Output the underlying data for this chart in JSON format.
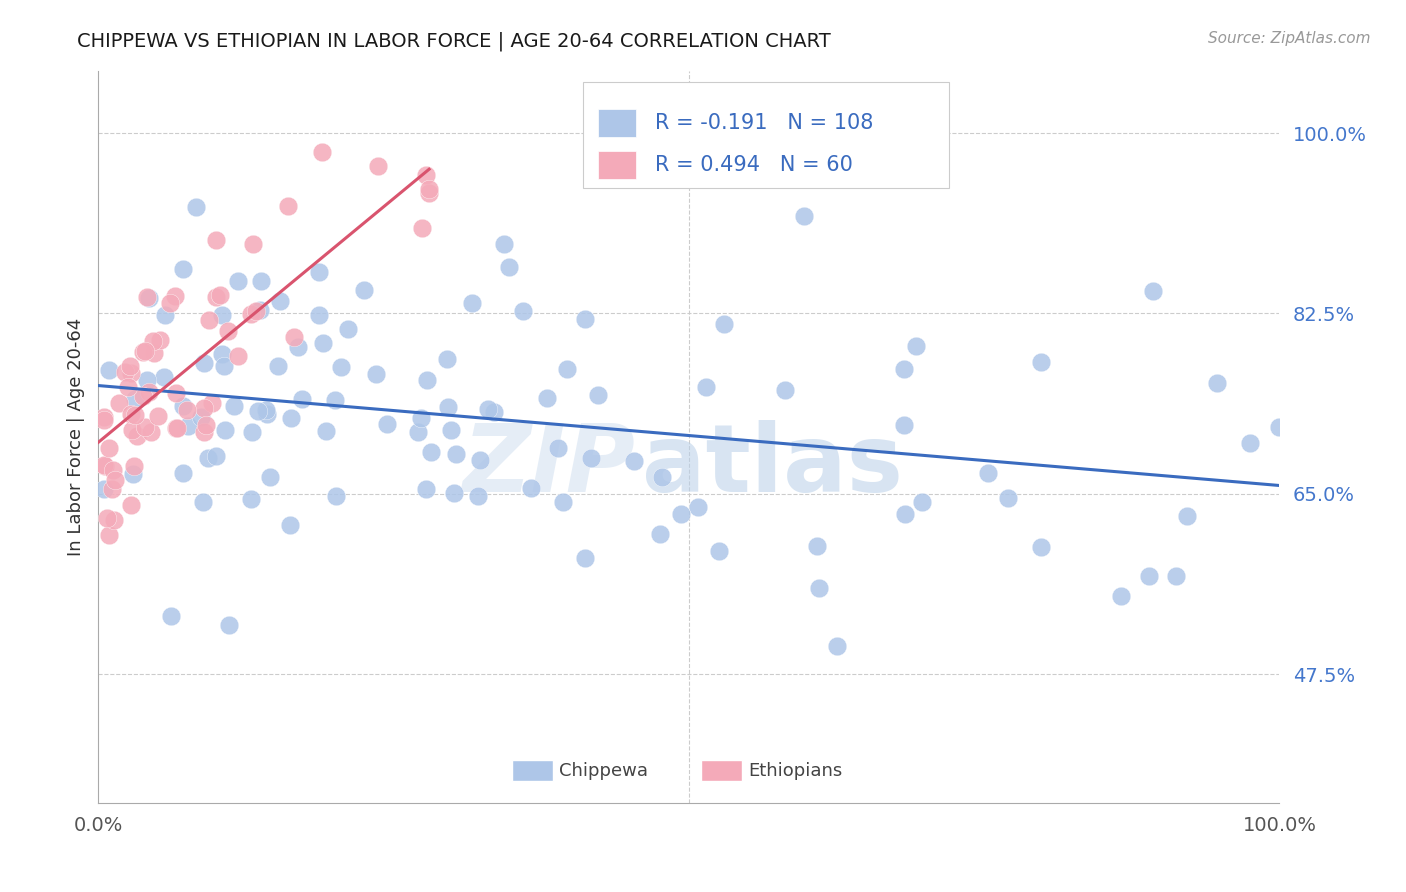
{
  "title": "CHIPPEWA VS ETHIOPIAN IN LABOR FORCE | AGE 20-64 CORRELATION CHART",
  "source": "Source: ZipAtlas.com",
  "ylabel": "In Labor Force | Age 20-64",
  "xlim": [
    0.0,
    1.0
  ],
  "ylim": [
    0.35,
    1.06
  ],
  "yticks": [
    0.475,
    0.65,
    0.825,
    1.0
  ],
  "ytick_labels": [
    "47.5%",
    "65.0%",
    "82.5%",
    "100.0%"
  ],
  "chippewa_R": -0.191,
  "chippewa_N": 108,
  "ethiopian_R": 0.494,
  "ethiopian_N": 60,
  "chippewa_color": "#aec6e8",
  "ethiopian_color": "#f4aab9",
  "chippewa_line_color": "#3a6bbf",
  "ethiopian_line_color": "#d9546e",
  "legend_color": "#3a6bbf",
  "grid_color": "#cccccc",
  "background_color": "#ffffff",
  "watermark_zip_color": "#d0dff0",
  "watermark_atlas_color": "#b8cfe8",
  "chippewa_line_x0": 0.0,
  "chippewa_line_y0": 0.755,
  "chippewa_line_x1": 1.0,
  "chippewa_line_y1": 0.658,
  "ethiopian_line_x0": 0.0,
  "ethiopian_line_y0": 0.7,
  "ethiopian_line_x1": 0.28,
  "ethiopian_line_y1": 0.965
}
